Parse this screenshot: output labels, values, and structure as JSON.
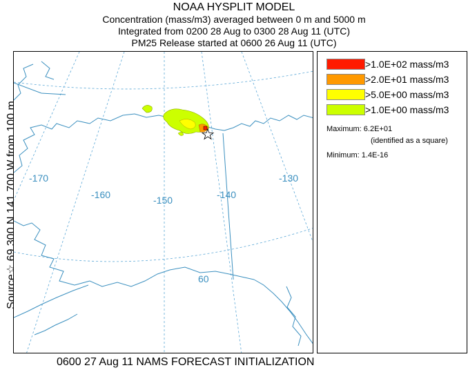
{
  "header": {
    "title": "NOAA HYSPLIT MODEL",
    "line2": "Concentration  (mass/m3) averaged between     0 m and  5000 m",
    "line3": "Integrated from 0200 28 Aug to 0300 28 Aug 11 (UTC)",
    "line4": "PM25 Release started at 0600 26 Aug 11 (UTC)"
  },
  "side_label": "Source☆ 69.300  N 141.700  W    from   100 m",
  "footer": "0600 27 Aug 11 NAMS FORECAST INITIALIZATION",
  "map": {
    "longitude_labels": [
      "-170",
      "-160",
      "-150",
      "-140",
      "-130"
    ],
    "latitude_labels": [
      "60"
    ]
  },
  "legend": {
    "items": [
      {
        "label": ">1.0E+02 mass/m3",
        "color": "#ff1a00"
      },
      {
        "label": ">2.0E+01 mass/m3",
        "color": "#ff9900"
      },
      {
        "label": ">5.0E+00 mass/m3",
        "color": "#ffff00"
      },
      {
        "label": ">1.0E+00 mass/m3",
        "color": "#ccff00"
      }
    ],
    "maximum": "Maximum: 6.2E+01",
    "maximum_note": "(identified as a square)",
    "minimum": "Minimum: 1.4E-16"
  }
}
